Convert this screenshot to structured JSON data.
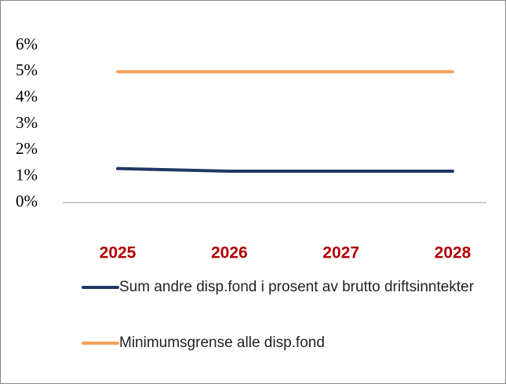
{
  "chart_data": {
    "type": "line",
    "categories": [
      "2025",
      "2026",
      "2027",
      "2028"
    ],
    "series": [
      {
        "name": "Sum andre disp.fond i prosent av brutto driftsinntekter",
        "color": "#1f3864",
        "values": [
          1.3,
          1.2,
          1.2,
          1.2
        ]
      },
      {
        "name": "Minimumsgrense alle disp.fond",
        "color": "#f5a05a",
        "values": [
          5,
          5,
          5,
          5
        ]
      }
    ],
    "ylim": [
      0,
      6
    ],
    "yticks": [
      {
        "value": 0,
        "label": "0%"
      },
      {
        "value": 1,
        "label": "1%"
      },
      {
        "value": 2,
        "label": "2%"
      },
      {
        "value": 3,
        "label": "3%"
      },
      {
        "value": 4,
        "label": "4%"
      },
      {
        "value": 5,
        "label": "5%"
      },
      {
        "value": 6,
        "label": "6%"
      }
    ],
    "category_color": "#b00000",
    "legend": "bottom"
  }
}
